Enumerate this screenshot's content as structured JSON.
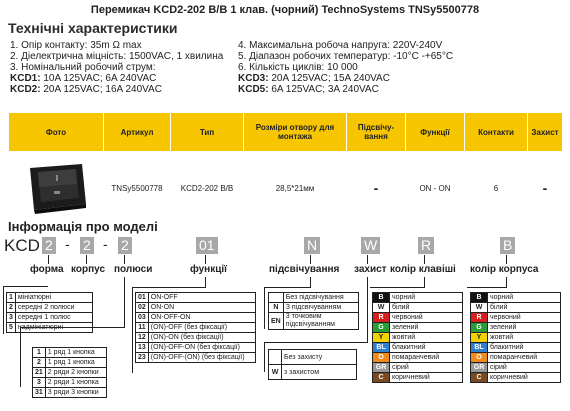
{
  "title": "Перемикач KCD2-202 B/B 1 клав. (чорний) TechnoSystems TNSy5500778",
  "specs_heading": "Технічні характеристики",
  "specs_left": [
    "1. Опір контакту: 35m Ω  max",
    "2. Діелектрична міцність:  1500VAC, 1 хвилина",
    "3. Номінальний робочий струм:"
  ],
  "specs_left_sub": [
    {
      "k": "KCD1:",
      "v": " 10A 125VAC; 6A 240VAC"
    },
    {
      "k": "KCD2:",
      "v": " 20A 125VAC; 16A 240VAC"
    }
  ],
  "specs_right": [
    "4. Максимальна робоча напруга: 220V-240V",
    "5. Діапазон робочих температур: -10°C -+65°C",
    "6. Кількість циклів: 10 000"
  ],
  "specs_right_sub": [
    {
      "k": "KCD3:",
      "v": " 20A 125VAC; 15A 240VAC"
    },
    {
      "k": "KCD5:",
      "v": " 6A 125VAC; 3A 240VAC"
    }
  ],
  "table": {
    "headers": [
      "Фото",
      "Артикул",
      "Тип",
      "Розміри отвору для монтажа",
      "Підсвічу-вання",
      "Функції",
      "Контакти",
      "Захист"
    ],
    "row": [
      "",
      "TNSy5500778",
      "KCD2-202 B/B",
      "28,5*21мм",
      "-",
      "ON - ON",
      "6",
      "-"
    ]
  },
  "model_heading": "Інформація про моделі",
  "model_code": {
    "prefix": "KCD",
    "a": "2",
    "b": "2",
    "c": "2",
    "f": "01",
    "n": "N",
    "w": "W",
    "r": "R",
    "bb": "B",
    "dash": "-"
  },
  "labels": {
    "forma": "форма",
    "korpus": "корпус",
    "polyusy": "полюси",
    "funktsii": "функції",
    "pidsv": "підсвічування",
    "zahyst": "захист",
    "kolir_klav": "колір клавіші",
    "kolir_korp": "колір корпуса"
  },
  "forma": [
    {
      "c": "1",
      "t": "мініатюрні"
    },
    {
      "c": "2",
      "t": "середні 2 полюси"
    },
    {
      "c": "3",
      "t": "середні 1 полюс"
    },
    {
      "c": "5",
      "t": "надмініатюрні"
    }
  ],
  "ryady": [
    {
      "c": "1",
      "t": "1 ряд 1 кнопка"
    },
    {
      "c": "2",
      "t": "1 ряд 1 кнопка"
    },
    {
      "c": "21",
      "t": "2 ряди 2 кнопки"
    },
    {
      "c": "3",
      "t": "2 ряди 1 кнопка"
    },
    {
      "c": "31",
      "t": "3 ряди 3 кнопки"
    }
  ],
  "funktsii_list": [
    {
      "c": "01",
      "t": "ON-OFF"
    },
    {
      "c": "02",
      "t": "ON-ON"
    },
    {
      "c": "03",
      "t": "ON-OFF-ON"
    },
    {
      "c": "11",
      "t": "(ON)-OFF (без фіксації)"
    },
    {
      "c": "12",
      "t": "(ON)-ON (без фіксації)"
    },
    {
      "c": "13",
      "t": "(ON)-OFF-ON (без фіксації)"
    },
    {
      "c": "23",
      "t": "(ON)-OFF-(ON) (без фіксації)"
    }
  ],
  "pidsv_list": [
    {
      "c": "",
      "t": "Без підсвічування"
    },
    {
      "c": "N",
      "t": "З підсвічуванням"
    },
    {
      "c": "EN",
      "t": "3 точковим підсвічуванням"
    }
  ],
  "zahyst_list": [
    {
      "c": "",
      "t": "Без захисту"
    },
    {
      "c": "W",
      "t": "з захистом"
    }
  ],
  "colors": [
    {
      "c": "B",
      "t": "чорний",
      "hex": "#111111"
    },
    {
      "c": "W",
      "t": "білий",
      "hex": "#ffffff"
    },
    {
      "c": "R",
      "t": "червоний",
      "hex": "#d62020"
    },
    {
      "c": "G",
      "t": "зелений",
      "hex": "#2a9d3a"
    },
    {
      "c": "Y",
      "t": "жовтий",
      "hex": "#f2d200"
    },
    {
      "c": "BL",
      "t": "блакитний",
      "hex": "#2f80d0"
    },
    {
      "c": "O",
      "t": "помаранчевий",
      "hex": "#f08a1c"
    },
    {
      "c": "GR",
      "t": "сірий",
      "hex": "#9a9a9a"
    },
    {
      "c": "C",
      "t": "коричневий",
      "hex": "#7a4a22"
    }
  ]
}
